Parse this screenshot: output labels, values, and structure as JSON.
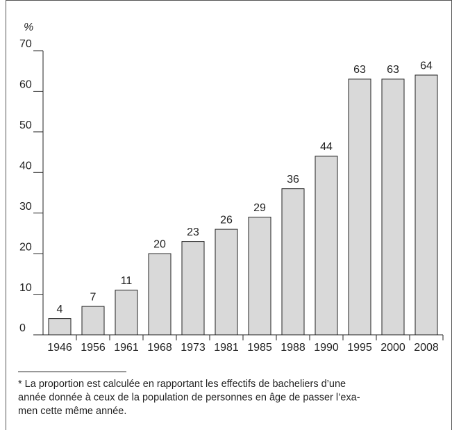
{
  "chart_data": {
    "type": "bar",
    "y_label": "%",
    "categories": [
      "1946",
      "1956",
      "1961",
      "1968",
      "1973",
      "1981",
      "1985",
      "1988",
      "1990",
      "1995",
      "2000",
      "2008"
    ],
    "values": [
      4,
      7,
      11,
      20,
      23,
      26,
      29,
      36,
      44,
      63,
      63,
      64
    ],
    "color": "#d9d9d9",
    "ylim": [
      0,
      70
    ],
    "yticks": [
      0,
      10,
      20,
      30,
      40,
      50,
      60,
      70
    ],
    "grid": false,
    "footnote_lines": [
      "* La proportion est calculée en rapportant les effectifs de bacheliers d’une",
      "année donnée à ceux de la population de personnes en âge de passer l’exa-",
      "men cette même année."
    ]
  }
}
